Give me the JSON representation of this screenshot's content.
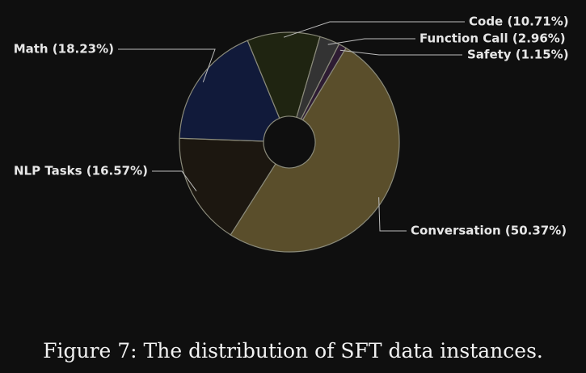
{
  "caption": "Figure 7: The distribution of SFT data instances.",
  "chart_data": {
    "type": "pie",
    "donut": true,
    "slices": [
      {
        "label": "Conversation",
        "value": 50.37,
        "display": "Conversation (50.37%)",
        "color": "#5a4e2b"
      },
      {
        "label": "NLP Tasks",
        "value": 16.57,
        "display": "NLP Tasks (16.57%)",
        "color": "#1c1710"
      },
      {
        "label": "Math",
        "value": 18.23,
        "display": "Math (18.23%)",
        "color": "#111a3a"
      },
      {
        "label": "Code",
        "value": 10.71,
        "display": "Code (10.71%)",
        "color": "#1f2411"
      },
      {
        "label": "Function Call",
        "value": 2.96,
        "display": "Function Call (2.96%)",
        "color": "#333333"
      },
      {
        "label": "Safety",
        "value": 1.15,
        "display": "Safety (1.15%)",
        "color": "#2e1c33"
      }
    ]
  }
}
